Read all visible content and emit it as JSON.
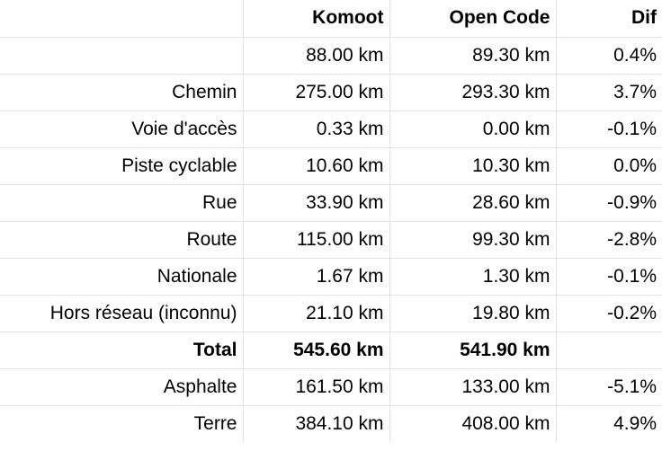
{
  "header": {
    "label": "",
    "komoot": "Komoot",
    "open_code": "Open Code",
    "dif": "Dif"
  },
  "rows": [
    {
      "label": "",
      "komoot": "88.00 km",
      "open_code": "89.30 km",
      "dif": "0.4%"
    },
    {
      "label": "Chemin",
      "komoot": "275.00 km",
      "open_code": "293.30 km",
      "dif": "3.7%"
    },
    {
      "label": "Voie d'accès",
      "komoot": "0.33 km",
      "open_code": "0.00 km",
      "dif": "-0.1%"
    },
    {
      "label": "Piste cyclable",
      "komoot": "10.60 km",
      "open_code": "10.30 km",
      "dif": "0.0%"
    },
    {
      "label": "Rue",
      "komoot": "33.90 km",
      "open_code": "28.60 km",
      "dif": "-0.9%"
    },
    {
      "label": "Route",
      "komoot": "115.00 km",
      "open_code": "99.30 km",
      "dif": "-2.8%"
    },
    {
      "label": "Nationale",
      "komoot": "1.67 km",
      "open_code": "1.30 km",
      "dif": "-0.1%"
    },
    {
      "label": "Hors réseau (inconnu)",
      "komoot": "21.10 km",
      "open_code": "19.80 km",
      "dif": "-0.2%"
    },
    {
      "label": "Total",
      "komoot": "545.60 km",
      "open_code": "541.90 km",
      "dif": "",
      "bold": true
    },
    {
      "label": "Asphalte",
      "komoot": "161.50 km",
      "open_code": "133.00 km",
      "dif": "-5.1%"
    },
    {
      "label": "Terre",
      "komoot": "384.10 km",
      "open_code": "408.00 km",
      "dif": "4.9%"
    }
  ]
}
